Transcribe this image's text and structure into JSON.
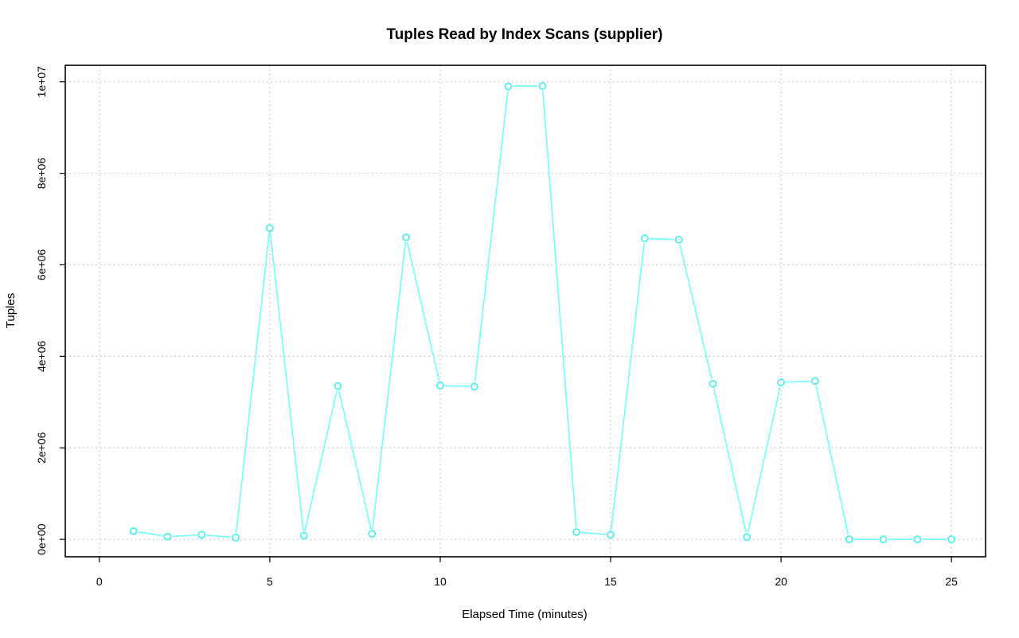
{
  "chart_data": {
    "type": "line",
    "title": "Tuples Read by Index Scans (supplier)",
    "xlabel": "Elapsed Time (minutes)",
    "ylabel": "Tuples",
    "xlim": [
      -1,
      26
    ],
    "ylim": [
      -380000,
      10360000
    ],
    "x_ticks": [
      0,
      5,
      10,
      15,
      20,
      25
    ],
    "x_tick_labels": [
      "0",
      "5",
      "10",
      "15",
      "20",
      "25"
    ],
    "y_ticks": [
      0,
      2000000,
      4000000,
      6000000,
      8000000,
      10000000
    ],
    "y_tick_labels": [
      "0e+00",
      "2e+06",
      "4e+06",
      "6e+06",
      "8e+06",
      "1e+07"
    ],
    "grid": true,
    "series": [
      {
        "color": "#6fffff",
        "marker": "open-circle",
        "x": [
          1,
          2,
          3,
          4,
          5,
          6,
          7,
          8,
          9,
          10,
          11,
          12,
          13,
          14,
          15,
          16,
          17,
          18,
          19,
          20,
          21,
          22,
          23,
          24,
          25
        ],
        "y": [
          180000,
          60000,
          100000,
          40000,
          6800000,
          80000,
          3350000,
          120000,
          6600000,
          3360000,
          3340000,
          9900000,
          9910000,
          160000,
          100000,
          6580000,
          6550000,
          3400000,
          50000,
          3430000,
          3460000,
          0,
          0,
          0,
          0
        ]
      }
    ]
  }
}
